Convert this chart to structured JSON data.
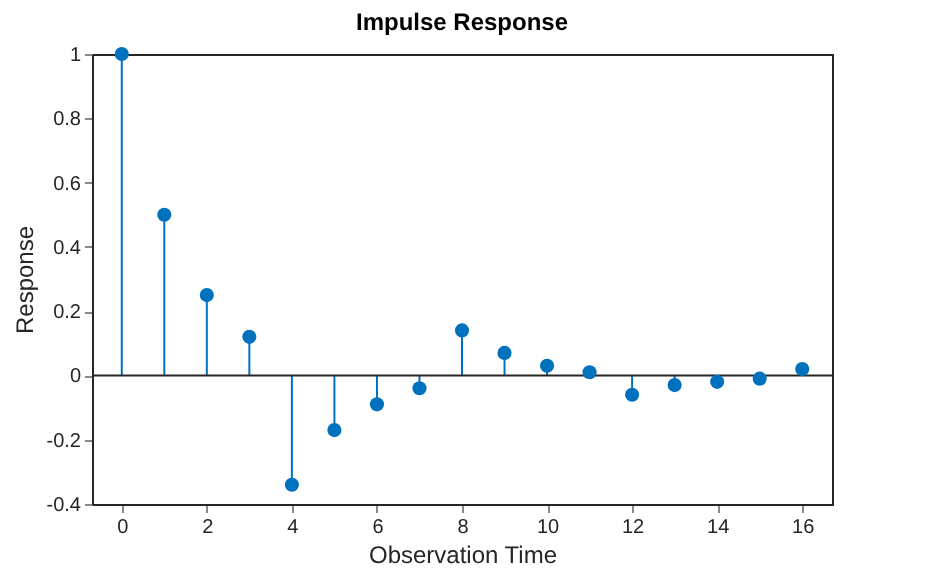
{
  "chart_data": {
    "type": "lollipop",
    "title": "Impulse Response",
    "xlabel": "Observation Time",
    "ylabel": "Response",
    "x": [
      0,
      1,
      2,
      3,
      4,
      5,
      6,
      7,
      8,
      9,
      10,
      11,
      12,
      13,
      14,
      15,
      16
    ],
    "values": [
      1,
      0.5,
      0.25,
      0.12,
      -0.34,
      -0.17,
      -0.09,
      -0.04,
      0.14,
      0.07,
      0.03,
      0.01,
      -0.06,
      -0.03,
      -0.02,
      -0.01,
      0.02
    ],
    "color": "#0072bd",
    "marker": "circle",
    "xlim": [
      -0.7,
      16.7
    ],
    "xticks": [
      0,
      2,
      4,
      6,
      8,
      10,
      12,
      14,
      16
    ],
    "ylim": [
      -0.4,
      1
    ],
    "yticks": [
      -0.4,
      -0.2,
      0,
      0.2,
      0.4,
      0.6,
      0.8,
      1
    ],
    "ref_lines": [
      {
        "axis": "y",
        "value": 0,
        "label": null,
        "color": "#262626"
      }
    ],
    "grid": false
  }
}
